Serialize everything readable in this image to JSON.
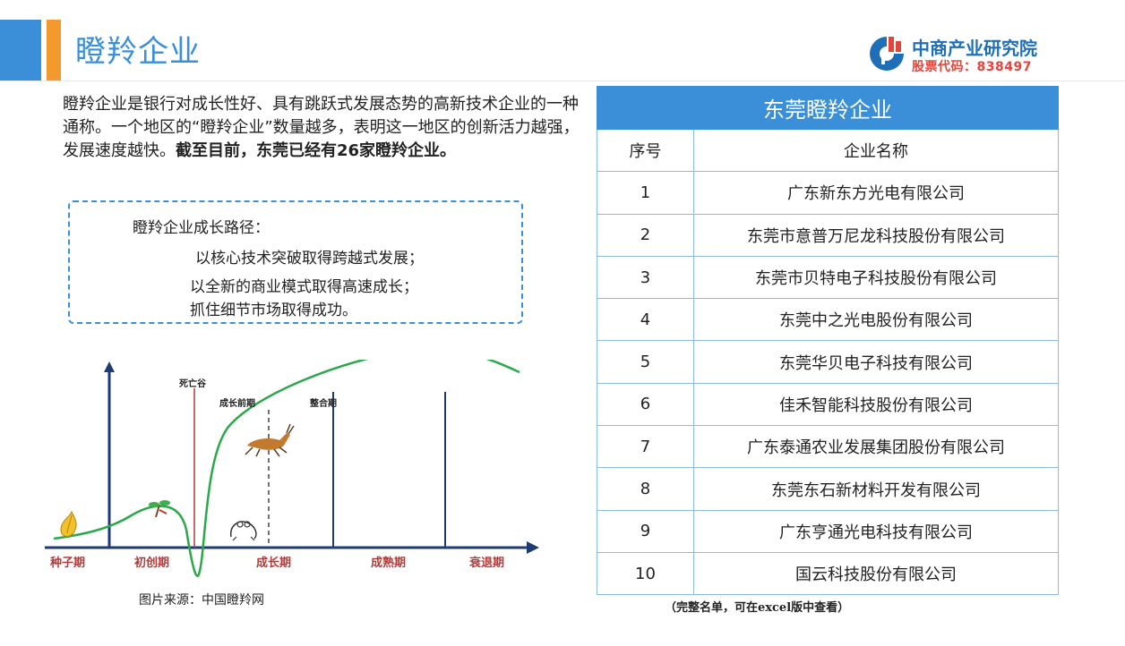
{
  "header": {
    "title": "瞪羚企业",
    "logo_name": "中商产业研究院",
    "logo_code": "股票代码：838497",
    "colors": {
      "blue": "#3a8fd8",
      "orange": "#f29a2e",
      "logo_red": "#e2453b"
    }
  },
  "intro": {
    "normal": "瞪羚企业是银行对成长性好、具有跳跃式发展态势的高新技术企业的一种通称。一个地区的“瞪羚企业”数量越多，表明这一地区的创新活力越强，发展速度越快。",
    "bold": "截至目前，东莞已经有26家瞪羚企业。"
  },
  "growth_path": {
    "title": "瞪羚企业成长路径：",
    "lines": [
      "以核心技术突破取得跨越式发展；",
      "以全新的商业模式取得高速成长；",
      "抓住细节市场取得成功。"
    ]
  },
  "diagram": {
    "stages": [
      "种子期",
      "初创期",
      "成长期",
      "成熟期",
      "衰退期"
    ],
    "markers": [
      "死亡谷",
      "成长前期",
      "整合期"
    ],
    "icons": [
      "seed-icon",
      "sapling-icon",
      "frog-icon",
      "gazelle-icon"
    ],
    "source": "图片来源：中国瞪羚网"
  },
  "table": {
    "caption": "东莞瞪羚企业",
    "headers": [
      "序号",
      "企业名称"
    ],
    "rows": [
      [
        "1",
        "广东新东方光电有限公司"
      ],
      [
        "2",
        "东莞市意普万尼龙科技股份有限公司"
      ],
      [
        "3",
        "东莞市贝特电子科技股份有限公司"
      ],
      [
        "4",
        "东莞中之光电股份有限公司"
      ],
      [
        "5",
        "东莞华贝电子科技有限公司"
      ],
      [
        "6",
        "佳禾智能科技股份有限公司"
      ],
      [
        "7",
        "广东泰通农业发展集团股份有限公司"
      ],
      [
        "8",
        "东莞东石新材料开发有限公司"
      ],
      [
        "9",
        "广东亨通光电科技有限公司"
      ],
      [
        "10",
        "国云科技股份有限公司"
      ]
    ],
    "note": "（完整名单，可在excel版中查看）"
  }
}
